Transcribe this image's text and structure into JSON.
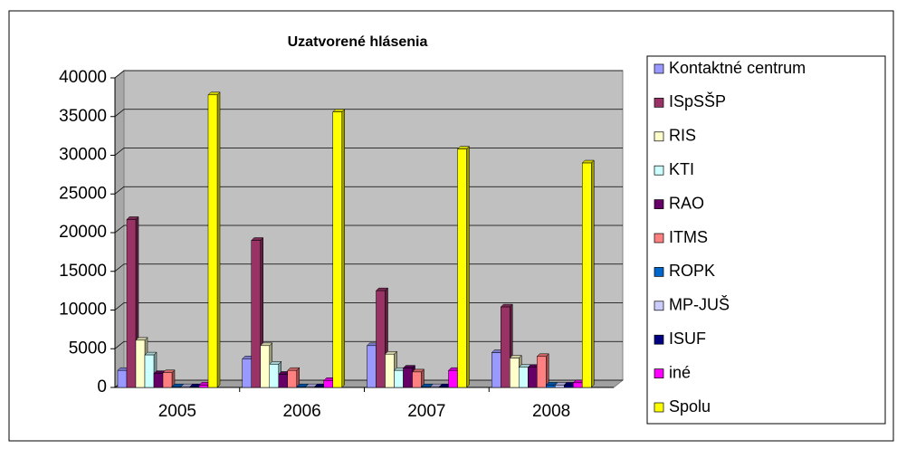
{
  "chart_data": {
    "type": "bar",
    "title": "Uzatvorené hlásenia",
    "categories": [
      "2005",
      "2006",
      "2007",
      "2008"
    ],
    "series": [
      {
        "name": "Kontaktné centrum",
        "color": "#9999ff",
        "values": [
          2200,
          3700,
          5400,
          4500
        ]
      },
      {
        "name": "ISpSŠP",
        "color": "#993366",
        "values": [
          21700,
          19000,
          12500,
          10400
        ]
      },
      {
        "name": "RIS",
        "color": "#ffffcc",
        "values": [
          6100,
          5400,
          4300,
          3800
        ]
      },
      {
        "name": "KTI",
        "color": "#ccffff",
        "values": [
          4200,
          3000,
          2200,
          2600
        ]
      },
      {
        "name": "RAO",
        "color": "#660066",
        "values": [
          1800,
          1700,
          2500,
          2600
        ]
      },
      {
        "name": "ITMS",
        "color": "#ff8080",
        "values": [
          1900,
          2200,
          2000,
          4000
        ]
      },
      {
        "name": "ROPK",
        "color": "#0066cc",
        "values": [
          100,
          100,
          100,
          300
        ]
      },
      {
        "name": "MP-JUŠ",
        "color": "#ccccff",
        "values": [
          100,
          100,
          100,
          300
        ]
      },
      {
        "name": "ISUF",
        "color": "#000080",
        "values": [
          100,
          100,
          100,
          300
        ]
      },
      {
        "name": "iné",
        "color": "#ff00ff",
        "values": [
          300,
          900,
          2200,
          600
        ]
      },
      {
        "name": "Spolu",
        "color": "#ffff00",
        "values": [
          37800,
          35600,
          30800,
          29000
        ]
      }
    ],
    "ylim": [
      0,
      40000
    ],
    "yticks": [
      0,
      5000,
      10000,
      15000,
      20000,
      25000,
      30000,
      35000,
      40000
    ],
    "grid": true,
    "legend": "right"
  }
}
